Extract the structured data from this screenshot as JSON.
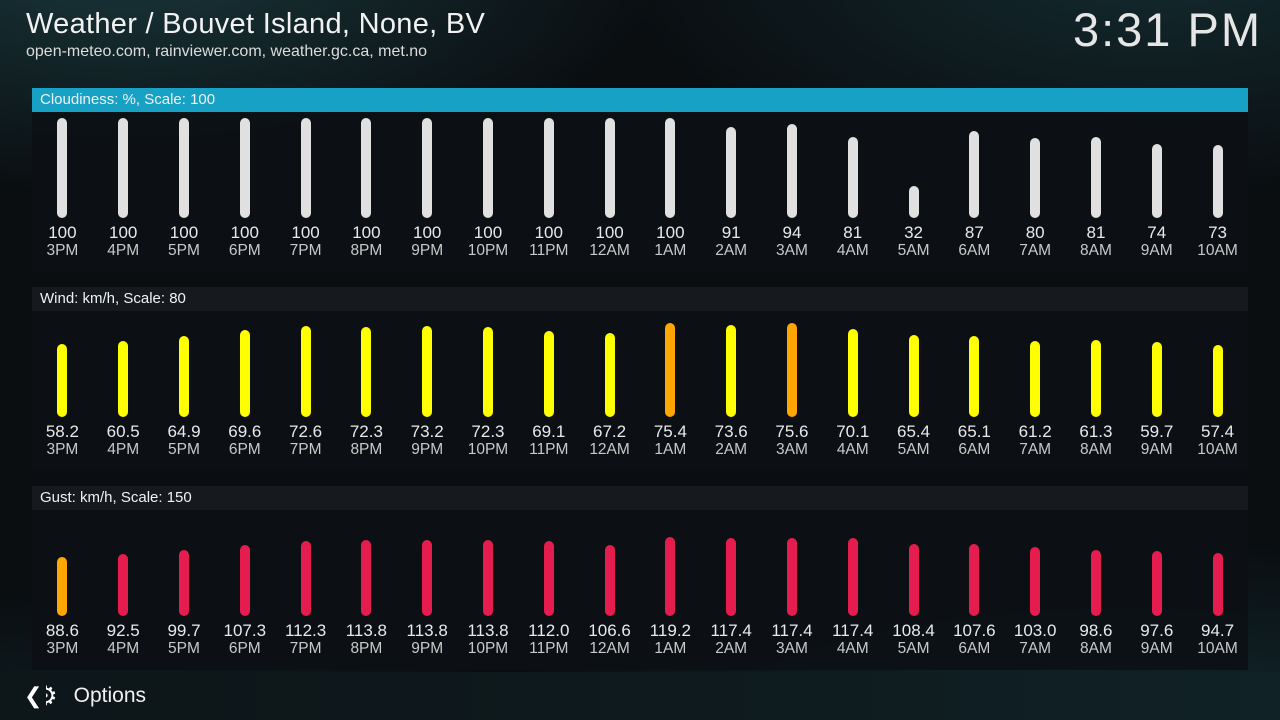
{
  "header": {
    "title": "Weather / Bouvet Island, None, BV",
    "subtitle": "open-meteo.com, rainviewer.com, weather.gc.ca, met.no",
    "clock": "3:31 PM"
  },
  "footer": {
    "options_label": "Options"
  },
  "colors": {
    "accent": "#17a1c4",
    "cloudiness_bar": "#e0e0e0",
    "wind_bar": "#ffff00",
    "warning_bar": "#ffa600",
    "gust_bar": "#e51c4e"
  },
  "chart_data": [
    {
      "id": "cloudiness",
      "type": "bar",
      "label": "Cloudiness: %, Scale: 100",
      "unit": "%",
      "scale": 100,
      "ylim": [
        0,
        100
      ],
      "focused": true,
      "bar_color": "#e0e0e0",
      "points": [
        {
          "time": "3PM",
          "value": "100"
        },
        {
          "time": "4PM",
          "value": "100"
        },
        {
          "time": "5PM",
          "value": "100"
        },
        {
          "time": "6PM",
          "value": "100"
        },
        {
          "time": "7PM",
          "value": "100"
        },
        {
          "time": "8PM",
          "value": "100"
        },
        {
          "time": "9PM",
          "value": "100"
        },
        {
          "time": "10PM",
          "value": "100"
        },
        {
          "time": "11PM",
          "value": "100"
        },
        {
          "time": "12AM",
          "value": "100"
        },
        {
          "time": "1AM",
          "value": "100"
        },
        {
          "time": "2AM",
          "value": "91"
        },
        {
          "time": "3AM",
          "value": "94"
        },
        {
          "time": "4AM",
          "value": "81"
        },
        {
          "time": "5AM",
          "value": "32"
        },
        {
          "time": "6AM",
          "value": "87"
        },
        {
          "time": "7AM",
          "value": "80"
        },
        {
          "time": "8AM",
          "value": "81"
        },
        {
          "time": "9AM",
          "value": "74"
        },
        {
          "time": "10AM",
          "value": "73"
        }
      ]
    },
    {
      "id": "wind",
      "type": "bar",
      "label": "Wind: km/h, Scale: 80",
      "unit": "km/h",
      "scale": 80,
      "ylim": [
        0,
        80
      ],
      "focused": false,
      "bar_color": "#ffff00",
      "points": [
        {
          "time": "3PM",
          "value": "58.2"
        },
        {
          "time": "4PM",
          "value": "60.5"
        },
        {
          "time": "5PM",
          "value": "64.9"
        },
        {
          "time": "6PM",
          "value": "69.6"
        },
        {
          "time": "7PM",
          "value": "72.6"
        },
        {
          "time": "8PM",
          "value": "72.3"
        },
        {
          "time": "9PM",
          "value": "73.2"
        },
        {
          "time": "10PM",
          "value": "72.3"
        },
        {
          "time": "11PM",
          "value": "69.1"
        },
        {
          "time": "12AM",
          "value": "67.2"
        },
        {
          "time": "1AM",
          "value": "75.4",
          "color": "#ffa600"
        },
        {
          "time": "2AM",
          "value": "73.6"
        },
        {
          "time": "3AM",
          "value": "75.6",
          "color": "#ffa600"
        },
        {
          "time": "4AM",
          "value": "70.1"
        },
        {
          "time": "5AM",
          "value": "65.4"
        },
        {
          "time": "6AM",
          "value": "65.1"
        },
        {
          "time": "7AM",
          "value": "61.2"
        },
        {
          "time": "8AM",
          "value": "61.3"
        },
        {
          "time": "9AM",
          "value": "59.7"
        },
        {
          "time": "10AM",
          "value": "57.4"
        }
      ]
    },
    {
      "id": "gust",
      "type": "bar",
      "label": "Gust: km/h, Scale: 150",
      "unit": "km/h",
      "scale": 150,
      "ylim": [
        0,
        150
      ],
      "focused": false,
      "bar_color": "#e51c4e",
      "points": [
        {
          "time": "3PM",
          "value": "88.6",
          "color": "#ffa600"
        },
        {
          "time": "4PM",
          "value": "92.5"
        },
        {
          "time": "5PM",
          "value": "99.7"
        },
        {
          "time": "6PM",
          "value": "107.3"
        },
        {
          "time": "7PM",
          "value": "112.3"
        },
        {
          "time": "8PM",
          "value": "113.8"
        },
        {
          "time": "9PM",
          "value": "113.8"
        },
        {
          "time": "10PM",
          "value": "113.8"
        },
        {
          "time": "11PM",
          "value": "112.0"
        },
        {
          "time": "12AM",
          "value": "106.6"
        },
        {
          "time": "1AM",
          "value": "119.2"
        },
        {
          "time": "2AM",
          "value": "117.4"
        },
        {
          "time": "3AM",
          "value": "117.4"
        },
        {
          "time": "4AM",
          "value": "117.4"
        },
        {
          "time": "5AM",
          "value": "108.4"
        },
        {
          "time": "6AM",
          "value": "107.6"
        },
        {
          "time": "7AM",
          "value": "103.0"
        },
        {
          "time": "8AM",
          "value": "98.6"
        },
        {
          "time": "9AM",
          "value": "97.6"
        },
        {
          "time": "10AM",
          "value": "94.7"
        }
      ]
    }
  ]
}
